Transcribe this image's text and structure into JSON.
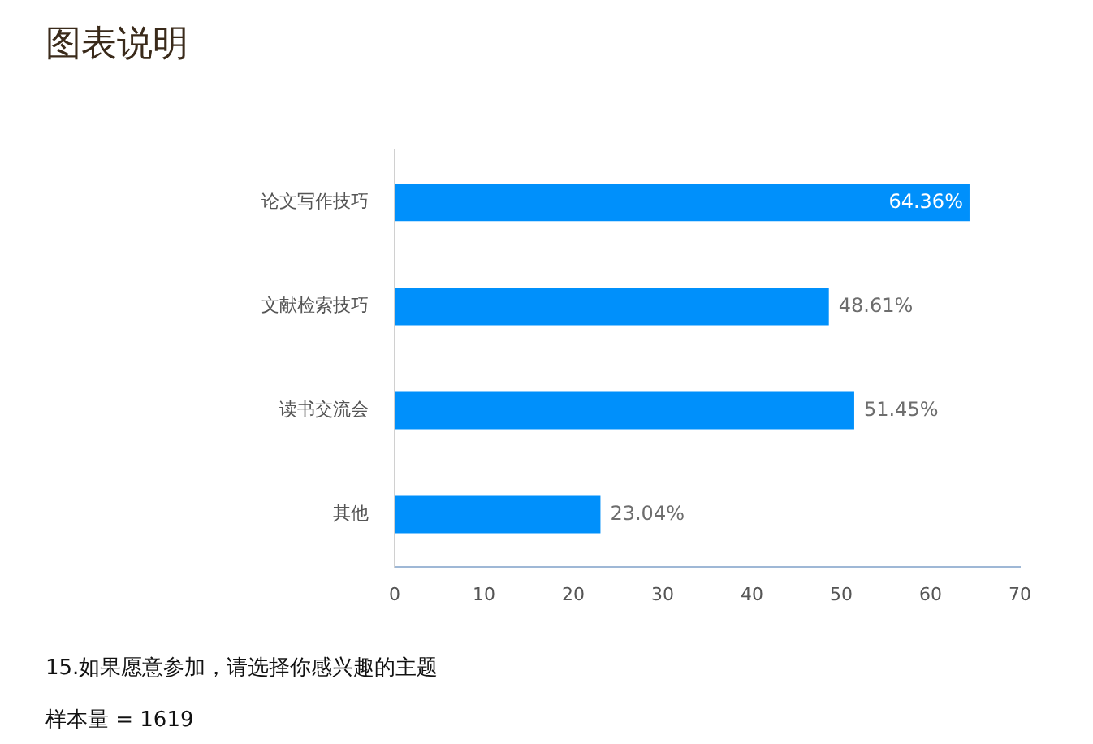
{
  "chart_data": {
    "type": "bar",
    "orientation": "horizontal",
    "title": "图表说明",
    "categories": [
      "论文写作技巧",
      "文献检索技巧",
      "读书交流会",
      "其他"
    ],
    "values": [
      64.36,
      48.61,
      51.45,
      23.04
    ],
    "value_labels": [
      "64.36%",
      "48.61%",
      "51.45%",
      "23.04%"
    ],
    "color": "#0090fb",
    "xlim": [
      0,
      70
    ],
    "xticks": [
      0,
      10,
      20,
      30,
      40,
      50,
      60,
      70
    ],
    "grid": false,
    "legend": false,
    "annotations": [
      "15.如果愿意参加，请选择你感兴趣的主题",
      "样本量 = 1619"
    ]
  }
}
